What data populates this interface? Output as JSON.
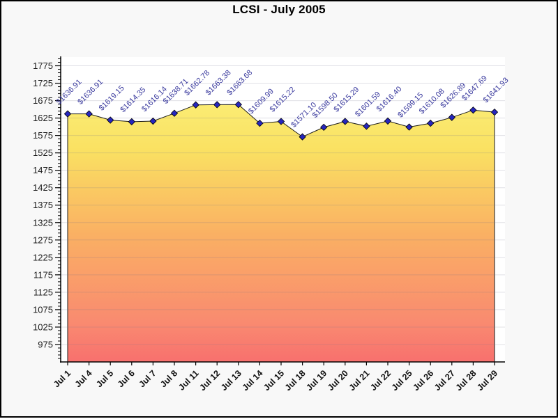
{
  "chart_data": {
    "type": "area",
    "title": "LCSI - July 2005",
    "categories": [
      "Jul 1",
      "Jul 4",
      "Jul 5",
      "Jul 6",
      "Jul 7",
      "Jul 8",
      "Jul 11",
      "Jul 12",
      "Jul 13",
      "Jul 14",
      "Jul 15",
      "Jul 18",
      "Jul 19",
      "Jul 20",
      "Jul 21",
      "Jul 22",
      "Jul 25",
      "Jul 26",
      "Jul 27",
      "Jul 28",
      "Jul 29"
    ],
    "values": [
      1636.91,
      1636.91,
      1619.15,
      1614.35,
      1616.14,
      1638.71,
      1662.78,
      1663.38,
      1663.68,
      1609.99,
      1615.22,
      1571.1,
      1598.5,
      1615.29,
      1601.59,
      1616.4,
      1599.15,
      1610.08,
      1626.89,
      1647.69,
      1641.93
    ],
    "point_labels": [
      "$1636.91",
      "$1636.91",
      "$1619.15",
      "$1614.35",
      "$1616.14",
      "$1638.71",
      "$1662.78",
      "$1663.38",
      "$1663.68",
      "$1609.99",
      "$1615.22",
      "$1571.10",
      "$1598.50",
      "$1615.29",
      "$1601.59",
      "$1616.40",
      "$1599.15",
      "$1610.08",
      "$1626.89",
      "$1647.69",
      "$1641.93"
    ],
    "ylim": [
      925,
      1800
    ],
    "yticks": [
      975,
      1025,
      1075,
      1125,
      1175,
      1225,
      1275,
      1325,
      1375,
      1425,
      1475,
      1525,
      1575,
      1625,
      1675,
      1725,
      1775
    ],
    "ytick_interval": 50,
    "minor_tick_interval": 10,
    "grid": true,
    "legend_position": "none",
    "x_label_rotation": -45,
    "point_label_rotation": -45,
    "colors": {
      "background": "#f8f8f8",
      "plot_background": "#ffffff",
      "gridline": "rgba(115,112,140,0.22)",
      "axis": "#000000",
      "line": "#1a1a1a",
      "marker_fill": "#2626be",
      "marker_stroke": "#000000",
      "point_label": "#3a3a9e",
      "tick_label": "#1a1a1a",
      "x_label": "#111111",
      "area_gradient": [
        "#FBEC74",
        "#FAE162",
        "#FAB163",
        "#F98A70",
        "#F8706E"
      ],
      "area_gradient_offsets": [
        0,
        0.18,
        0.5,
        0.85,
        1
      ]
    }
  }
}
